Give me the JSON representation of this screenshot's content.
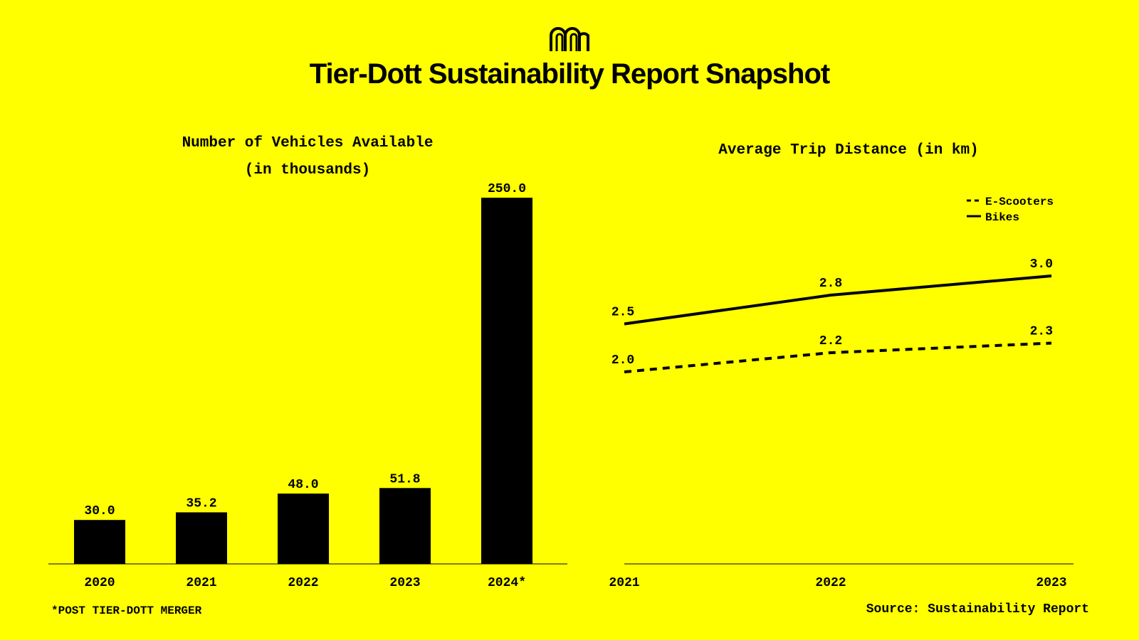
{
  "header": {
    "logo_icon": "m-arch-logo-icon",
    "title": "Tier-Dott Sustainability Report Snapshot"
  },
  "chart_data": [
    {
      "type": "bar",
      "title": "Number of Vehicles Available",
      "subtitle": "(in thousands)",
      "categories": [
        "2020",
        "2021",
        "2022",
        "2023",
        "2024*"
      ],
      "values": [
        30.0,
        35.2,
        48.0,
        51.8,
        250.0
      ],
      "value_labels": [
        "30.0",
        "35.2",
        "48.0",
        "51.8",
        "250.0"
      ],
      "ylim": [
        0,
        250
      ],
      "grid": false,
      "bar_color": "#000000"
    },
    {
      "type": "line",
      "title": "Average Trip Distance (in km)",
      "x": [
        "2021",
        "2022",
        "2023"
      ],
      "ylim": [
        0,
        3.0
      ],
      "grid": false,
      "legend_position": "top-right",
      "series": [
        {
          "name": "E-Scooters",
          "style": "dashed",
          "values": [
            2.0,
            2.2,
            2.3
          ],
          "labels": [
            "2.0",
            "2.2",
            "2.3"
          ]
        },
        {
          "name": "Bikes",
          "style": "solid",
          "values": [
            2.5,
            2.8,
            3.0
          ],
          "labels": [
            "2.5",
            "2.8",
            "3.0"
          ]
        }
      ]
    }
  ],
  "footer": {
    "footnote": "*POST TIER-DOTT MERGER",
    "source": "Source: Sustainability Report"
  },
  "colors": {
    "background": "#FFFF00",
    "ink": "#000000"
  }
}
